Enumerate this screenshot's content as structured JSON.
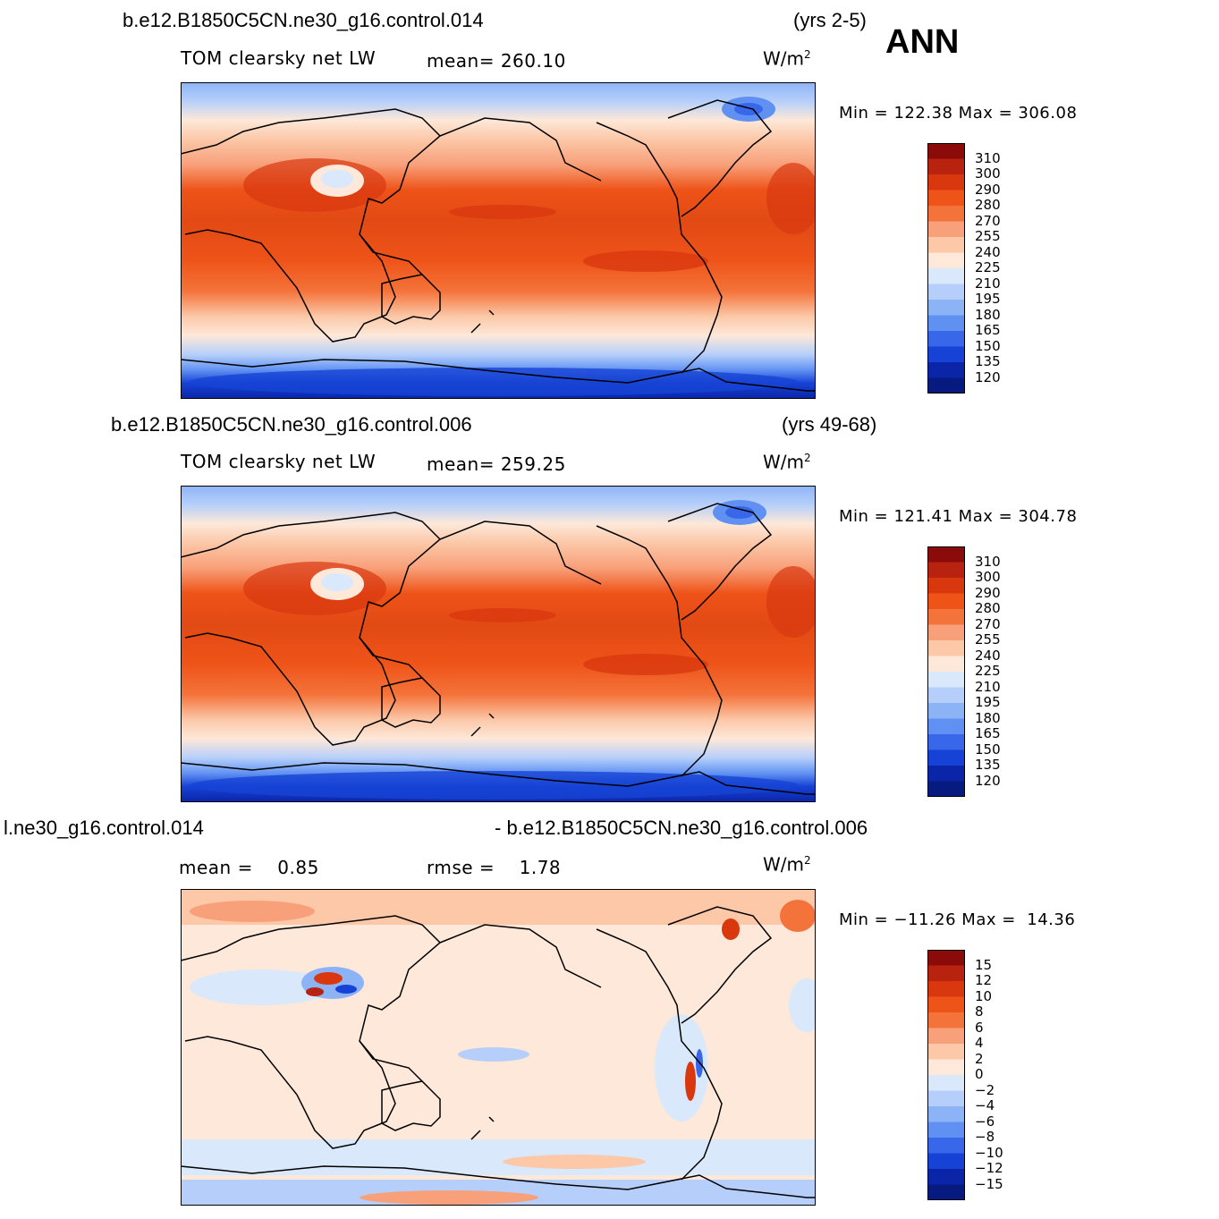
{
  "season": "ANN",
  "panels": [
    {
      "case_title": "b.e12.B1850C5CN.ne30_g16.control.014",
      "years": "(yrs 2-5)",
      "variable": "TOM clearsky net LW",
      "stat_text": "mean= 260.10",
      "stat2_text": "",
      "units": "W/m",
      "units_sup": "2",
      "minmax": "Min = 122.38 Max = 306.08",
      "colorbar_labels": [
        "310",
        "300",
        "290",
        "280",
        "270",
        "255",
        "240",
        "225",
        "210",
        "195",
        "180",
        "165",
        "150",
        "135",
        "120"
      ]
    },
    {
      "case_title": "b.e12.B1850C5CN.ne30_g16.control.006",
      "years": "(yrs 49-68)",
      "variable": "TOM clearsky net LW",
      "stat_text": "mean= 259.25",
      "stat2_text": "",
      "units": "W/m",
      "units_sup": "2",
      "minmax": "Min = 121.41 Max = 304.78",
      "colorbar_labels": [
        "310",
        "300",
        "290",
        "280",
        "270",
        "255",
        "240",
        "225",
        "210",
        "195",
        "180",
        "165",
        "150",
        "135",
        "120"
      ]
    },
    {
      "case_title": "l.ne30_g16.control.014",
      "years": "- b.e12.B1850C5CN.ne30_g16.control.006",
      "variable": "",
      "stat_text": "mean =    0.85",
      "stat2_text": "rmse =    1.78",
      "units": "W/m",
      "units_sup": "2",
      "minmax": "Min = −11.26 Max =  14.36",
      "colorbar_labels": [
        "15",
        "12",
        "10",
        "8",
        "6",
        "4",
        "2",
        "0",
        "−2",
        "−4",
        "−6",
        "−8",
        "−10",
        "−12",
        "−15"
      ]
    }
  ],
  "palettes": {
    "absolute": [
      "#8b0a0a",
      "#b8230f",
      "#d9380f",
      "#ee5318",
      "#f4733a",
      "#f8a07a",
      "#fcc8a8",
      "#fde8d9",
      "#d9e8fb",
      "#b6cffa",
      "#8db3f7",
      "#5f90f2",
      "#3867ea",
      "#1643d5",
      "#0b25a8",
      "#071a80"
    ],
    "difference": [
      "#8b0a0a",
      "#b8230f",
      "#d9380f",
      "#ee5318",
      "#f4733a",
      "#f8a07a",
      "#fcc8a8",
      "#fde8d9",
      "#d9e8fb",
      "#b6cffa",
      "#8db3f7",
      "#5f90f2",
      "#3867ea",
      "#1643d5",
      "#0b25a8",
      "#071a80"
    ]
  }
}
